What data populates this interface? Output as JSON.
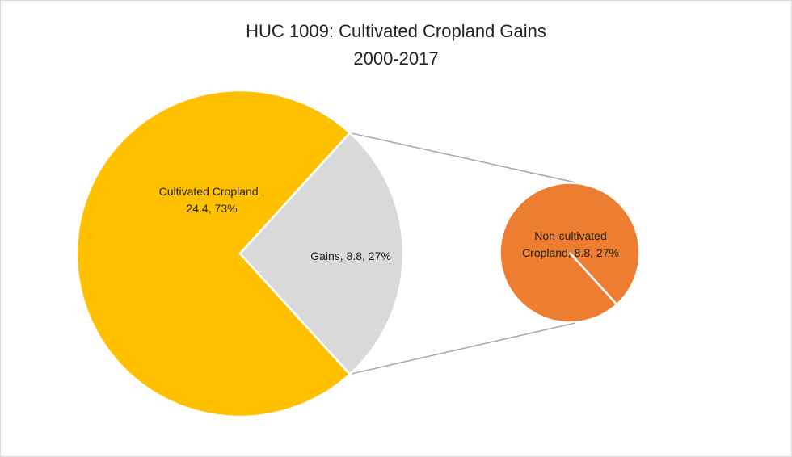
{
  "chart_data": {
    "type": "pie_of_pie",
    "title": [
      "HUC 1009: Cultivated Cropland Gains",
      "2000-2017"
    ],
    "values": [
      24.4,
      8.8
    ],
    "colors": [
      "#FFC000",
      "#D9D9D9"
    ],
    "labels": [
      [
        "Cultivated Cropland ,",
        "24.4, 73%"
      ],
      [
        "Gains, 8.8, 27%"
      ]
    ],
    "secondary": {
      "values": [
        8.8
      ],
      "colors": [
        "#ED7D31"
      ],
      "labels": [
        [
          "Non-cultivated",
          "Cropland, 8.8, 27%"
        ]
      ]
    }
  }
}
